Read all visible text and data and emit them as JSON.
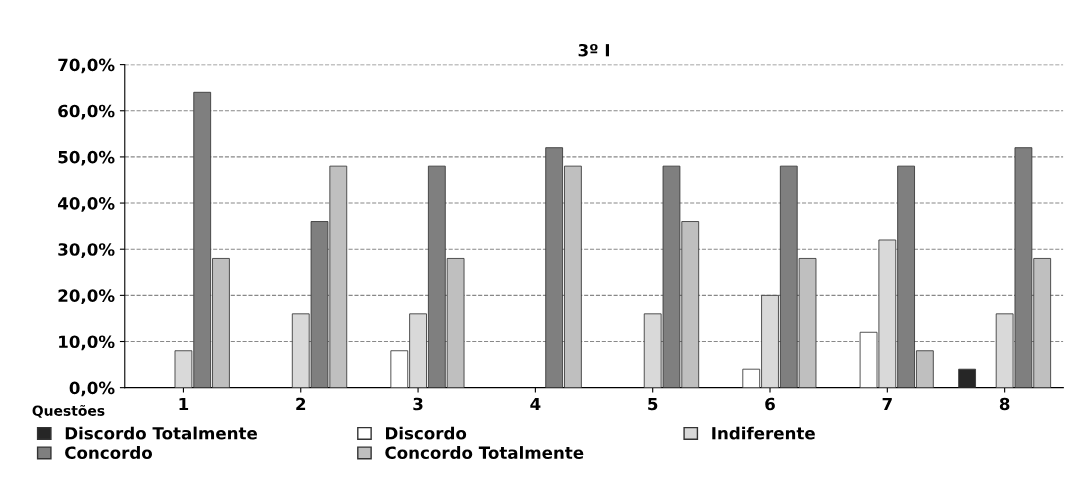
{
  "chart_data": {
    "type": "bar",
    "title": "3º I",
    "xlabel": "Questões",
    "categories": [
      "1",
      "2",
      "3",
      "4",
      "5",
      "6",
      "7",
      "8"
    ],
    "series": [
      {
        "name": "Discordo Totalmente",
        "color": "#262626",
        "values": [
          0,
          0,
          0,
          0,
          0,
          0,
          0,
          4
        ]
      },
      {
        "name": "Discordo",
        "color": "#ffffff",
        "values": [
          0,
          0,
          8,
          0,
          0,
          4,
          12,
          0
        ]
      },
      {
        "name": "Indiferente",
        "color": "#d9d9d9",
        "values": [
          8,
          16,
          16,
          0,
          16,
          20,
          32,
          16
        ]
      },
      {
        "name": "Concordo",
        "color": "#7f7f7f",
        "values": [
          64,
          36,
          48,
          52,
          48,
          48,
          48,
          52
        ]
      },
      {
        "name": "Concordo Totalmente",
        "color": "#bfbfbf",
        "values": [
          28,
          48,
          28,
          48,
          36,
          28,
          8,
          28
        ]
      }
    ],
    "ylim": [
      0,
      70
    ],
    "yticks": [
      {
        "value": 0,
        "label": "0,0%"
      },
      {
        "value": 10,
        "label": "10,0%"
      },
      {
        "value": 20,
        "label": "20,0%"
      },
      {
        "value": 30,
        "label": "30,0%"
      },
      {
        "value": 40,
        "label": "40,0%"
      },
      {
        "value": 50,
        "label": "50,0%"
      },
      {
        "value": 60,
        "label": "60,0%"
      },
      {
        "value": 70,
        "label": "70,0%"
      }
    ],
    "grid": "y",
    "legend": "bottom"
  }
}
